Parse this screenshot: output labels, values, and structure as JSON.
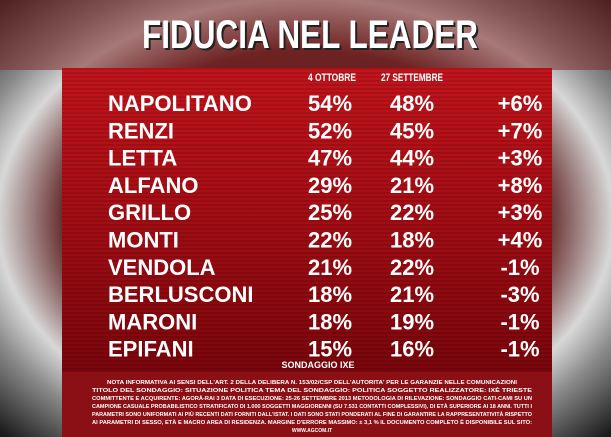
{
  "header": {
    "title": "FIDUCIA NEL LEADER"
  },
  "table": {
    "columns": [
      "4 OTTOBRE",
      "27 SETTEMBRE"
    ],
    "rows": [
      [
        "NAPOLITANO",
        "54%",
        "48%",
        "+6%"
      ],
      [
        "RENZI",
        "52%",
        "45%",
        "+7%"
      ],
      [
        "LETTA",
        "47%",
        "44%",
        "+3%"
      ],
      [
        "ALFANO",
        "29%",
        "21%",
        "+8%"
      ],
      [
        "GRILLO",
        "25%",
        "22%",
        "+3%"
      ],
      [
        "MONTI",
        "22%",
        "18%",
        "+4%"
      ],
      [
        "VENDOLA",
        "21%",
        "22%",
        "-1%"
      ],
      [
        "BERLUSCONI",
        "18%",
        "21%",
        "-3%"
      ],
      [
        "MARONI",
        "18%",
        "19%",
        "-1%"
      ],
      [
        "EPIFANI",
        "15%",
        "16%",
        "-1%"
      ]
    ]
  },
  "footer": {
    "source": "SONDAGGIO IXE",
    "note": [
      "NOTA INFORMATIVA AI SENSI DELL'ART. 2 DELLA DELIBERA N. 153/02/CSP DELL'AUTORITA' PER LE GARANZIE NELLE COMUNICAZIONI",
      "TITOLO DEL SONDAGGIO: SITUAZIONE POLITICA  TEMA DEL SONDAGGIO: POLITICA  SOGGETTO REALIZZATORE: IXÈ TRIESTE",
      "COMMITTENTE E ACQUIRENTE: AGORÀ-RAI 3  DATA DI ESECUZIONE: 25-26 SETTEMBRE 2013  METODOLOGIA DI RILEVAZIONE: SONDAGGIO CATI-CAMI SU UN",
      "CAMPIONE CASUALE PROBABILISTICO STRATIFICATO DI 1.000 SOGGETTI MAGGIORENNI (SU 7.531 CONTATTI COMPLESSIVI), DI ETÀ SUPERIORE AI 18 ANNI. TUTTI I",
      "PARAMETRI SONO UNIFORMATI AI PIÙ RECENTI DATI FORNITI DALL'ISTAT. I DATI SONO STATI PONDERATI AL FINE DI GARANTIRE LA RAPPRESENTATIVITÀ RISPETTO",
      "AI PARAMETRI DI SESSO, ETÀ E MACRO AREA DI RESIDENZA. MARGINE D'ERRORE MASSIMO: ± 3,1 %  IL DOCUMENTO COMPLETO È DISPONIBILE SUL SITO:",
      "WWW.AGCOM.IT"
    ]
  }
}
